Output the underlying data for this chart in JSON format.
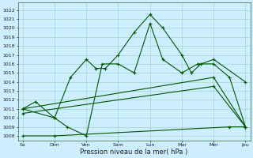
{
  "xlabel": "Pression niveau de la mer( hPa )",
  "background_color": "#cceeff",
  "grid_color": "#99ccbb",
  "line_color": "#005500",
  "yticks": [
    1008,
    1009,
    1010,
    1011,
    1012,
    1013,
    1014,
    1015,
    1016,
    1017,
    1018,
    1019,
    1020,
    1021,
    1022
  ],
  "ylim": [
    1007.5,
    1022.8
  ],
  "xlim": [
    -0.15,
    7.15
  ],
  "x_tick_positions": [
    0,
    1,
    2,
    3,
    4,
    5,
    6,
    7
  ],
  "x_tick_labels": [
    "Sa",
    "Dim",
    "Ven",
    "Sam",
    "Lun",
    "Mar",
    "Mer",
    "Jeu"
  ],
  "s1x": [
    0.0,
    0.4,
    1.0,
    1.5,
    2.0,
    2.3,
    2.6,
    3.0,
    3.5,
    4.0,
    4.4,
    5.0,
    5.3,
    5.6,
    6.0,
    7.0
  ],
  "s1y": [
    1011,
    1011.8,
    1010,
    1014.5,
    1016.5,
    1015.5,
    1015.5,
    1017.0,
    1019.5,
    1021.5,
    1020.0,
    1017.0,
    1015.0,
    1016.0,
    1016.5,
    1014.0
  ],
  "s2x": [
    0.0,
    1.0,
    1.4,
    2.0,
    2.5,
    3.0,
    3.5,
    4.0,
    4.4,
    5.0,
    5.5,
    6.0,
    6.5,
    7.0
  ],
  "s2y": [
    1011,
    1010,
    1009,
    1008,
    1016,
    1016,
    1015,
    1020.5,
    1016.5,
    1015.0,
    1016.0,
    1016.0,
    1014.5,
    1009.0
  ],
  "s3x": [
    0.0,
    6.0,
    7.0
  ],
  "s3y": [
    1011.0,
    1014.5,
    1009.0
  ],
  "s4x": [
    0.0,
    6.0,
    7.0
  ],
  "s4y": [
    1010.5,
    1013.5,
    1009.0
  ],
  "s5x": [
    0.0,
    1.0,
    6.5,
    7.0
  ],
  "s5y": [
    1008.0,
    1008.0,
    1009.0,
    1009.0
  ]
}
